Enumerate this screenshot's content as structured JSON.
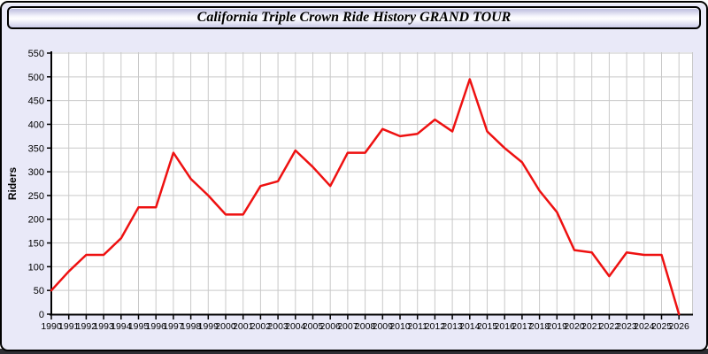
{
  "window": {
    "title": "California Triple Crown Ride History GRAND TOUR"
  },
  "chart_data": {
    "type": "line",
    "title": "California Triple Crown Ride History GRAND TOUR",
    "xlabel": "",
    "ylabel": "Riders",
    "x": [
      1990,
      1991,
      1992,
      1993,
      1994,
      1995,
      1996,
      1997,
      1998,
      1999,
      2000,
      2001,
      2002,
      2003,
      2004,
      2005,
      2006,
      2007,
      2008,
      2009,
      2010,
      2011,
      2012,
      2013,
      2014,
      2015,
      2016,
      2017,
      2018,
      2019,
      2020,
      2021,
      2022,
      2023,
      2024,
      2025,
      2026
    ],
    "series": [
      {
        "name": "Riders",
        "color": "#ee1111",
        "values": [
          50,
          90,
          125,
          125,
          160,
          225,
          225,
          340,
          285,
          250,
          210,
          210,
          270,
          280,
          345,
          310,
          270,
          340,
          340,
          390,
          375,
          380,
          410,
          385,
          495,
          385,
          350,
          320,
          260,
          215,
          135,
          130,
          80,
          130,
          125,
          125,
          0
        ]
      }
    ],
    "ylim": [
      0,
      550
    ],
    "ytick_step": 50,
    "xtick_every": 1,
    "grid": true,
    "legend": "none",
    "plot_bg": "#ffffff",
    "grid_color": "#c9c9c9",
    "axis_color": "#000000"
  },
  "colors": {
    "panel_bg": "#e9e9f8",
    "border": "#000000",
    "bottom_strip": "#2e2e33"
  }
}
